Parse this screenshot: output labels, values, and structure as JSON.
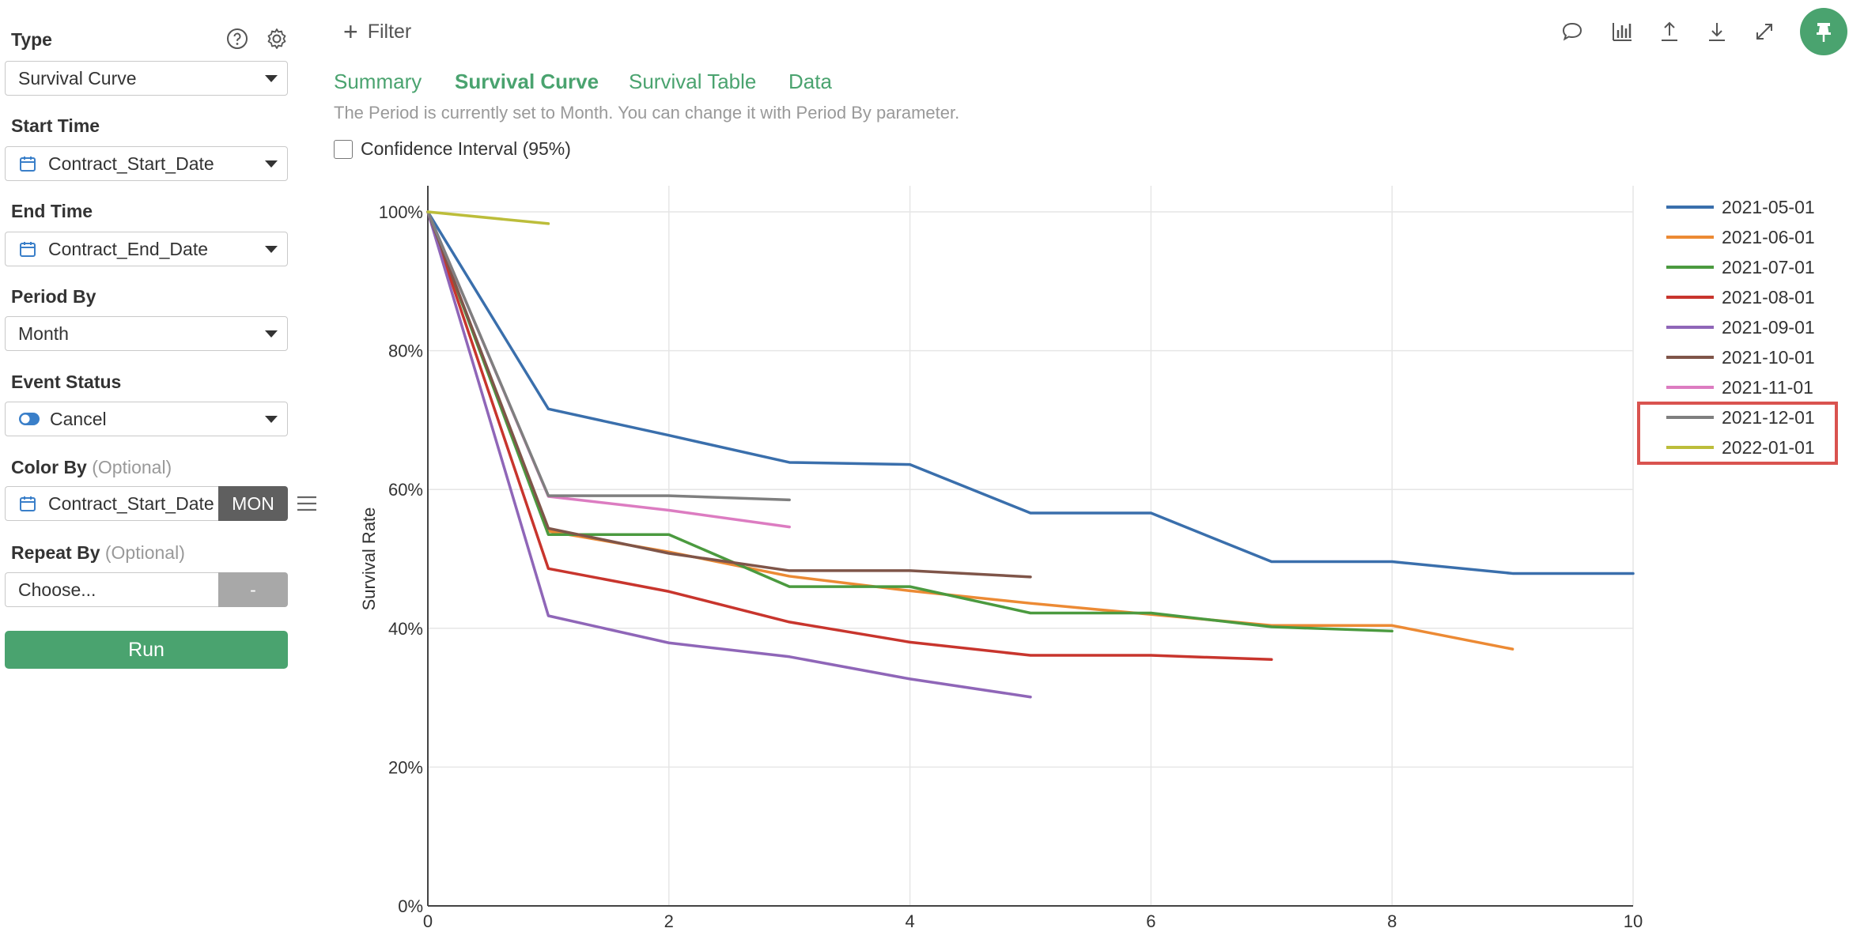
{
  "sidebar": {
    "type": {
      "label": "Type",
      "value": "Survival Curve"
    },
    "start_time": {
      "label": "Start Time",
      "value": "Contract_Start_Date"
    },
    "end_time": {
      "label": "End Time",
      "value": "Contract_End_Date"
    },
    "period_by": {
      "label": "Period By",
      "value": "Month"
    },
    "event_status": {
      "label": "Event Status",
      "value": "Cancel"
    },
    "color_by": {
      "label": "Color By",
      "optional": "(Optional)",
      "value": "Contract_Start_Date",
      "unit_button": "MON"
    },
    "repeat_by": {
      "label": "Repeat By",
      "optional": "(Optional)",
      "placeholder": "Choose...",
      "button": "-"
    },
    "run_label": "Run",
    "icons": {
      "help": "help-circle-icon",
      "settings": "gear-icon",
      "calendar": "calendar-icon",
      "toggle": "toggle-icon",
      "menu": "hamburger-menu-icon"
    }
  },
  "toolbar": {
    "filter_label": "Filter",
    "icons": [
      "comment-icon",
      "chart-bar-icon",
      "upload-icon",
      "download-icon",
      "expand-icon",
      "pin-icon"
    ]
  },
  "tabs": [
    {
      "label": "Summary",
      "active": false
    },
    {
      "label": "Survival Curve",
      "active": true
    },
    {
      "label": "Survival Table",
      "active": false
    },
    {
      "label": "Data",
      "active": false
    }
  ],
  "info_text": "The Period is currently set to Month. You can change it with Period By parameter.",
  "confidence_interval": {
    "label": "Confidence Interval (95%)",
    "checked": false
  },
  "colors": {
    "accent": "#4aa36f",
    "highlight": "#d9534f"
  },
  "chart_data": {
    "type": "line",
    "ylabel": "Survival Rate",
    "xlabel": "",
    "xlim": [
      0,
      10
    ],
    "ylim": [
      0,
      100
    ],
    "x_ticks": [
      0,
      2,
      4,
      6,
      8,
      10
    ],
    "y_ticks": [
      0,
      20,
      40,
      60,
      80,
      100
    ],
    "y_tick_suffix": "%",
    "grid": true,
    "legend_position": "right",
    "highlighted_legend_entries": [
      "2021-12-01",
      "2022-01-01"
    ],
    "series": [
      {
        "name": "2021-05-01",
        "color": "#3a6fac",
        "x": [
          0,
          1,
          2,
          3,
          4,
          5,
          6,
          7,
          8,
          9,
          10
        ],
        "y": [
          100,
          71.6,
          67.8,
          63.9,
          63.6,
          56.6,
          56.6,
          49.6,
          49.6,
          47.9,
          47.9
        ]
      },
      {
        "name": "2021-06-01",
        "color": "#ec8a34",
        "x": [
          0,
          1,
          2,
          3,
          4,
          5,
          6,
          7,
          8,
          9
        ],
        "y": [
          100,
          54,
          51,
          47.5,
          45.4,
          43.6,
          42,
          40.4,
          40.4,
          37
        ]
      },
      {
        "name": "2021-07-01",
        "color": "#4b9a3f",
        "x": [
          0,
          1,
          2,
          3,
          4,
          5,
          6,
          7,
          8
        ],
        "y": [
          100,
          53.5,
          53.5,
          46,
          46,
          42.2,
          42.2,
          40.2,
          39.6
        ]
      },
      {
        "name": "2021-08-01",
        "color": "#c8352d",
        "x": [
          0,
          1,
          2,
          3,
          4,
          5,
          6,
          7
        ],
        "y": [
          100,
          48.6,
          45.3,
          40.9,
          38,
          36.1,
          36.1,
          35.5
        ]
      },
      {
        "name": "2021-09-01",
        "color": "#8f66b8",
        "x": [
          0,
          1,
          2,
          3,
          4,
          5
        ],
        "y": [
          100,
          41.8,
          37.9,
          35.9,
          32.7,
          30.1
        ]
      },
      {
        "name": "2021-10-01",
        "color": "#7f5549",
        "x": [
          0,
          1,
          2,
          3,
          4,
          5
        ],
        "y": [
          100,
          54.4,
          50.8,
          48.3,
          48.3,
          47.4
        ]
      },
      {
        "name": "2021-11-01",
        "color": "#dc7cc1",
        "x": [
          0,
          1,
          2,
          3
        ],
        "y": [
          100,
          59,
          57,
          54.6
        ]
      },
      {
        "name": "2021-12-01",
        "color": "#7f7f7f",
        "x": [
          0,
          1,
          2,
          3
        ],
        "y": [
          100,
          59.1,
          59.1,
          58.5
        ]
      },
      {
        "name": "2022-01-01",
        "color": "#bcbd3a",
        "x": [
          0,
          1
        ],
        "y": [
          100,
          98.3
        ]
      }
    ]
  }
}
